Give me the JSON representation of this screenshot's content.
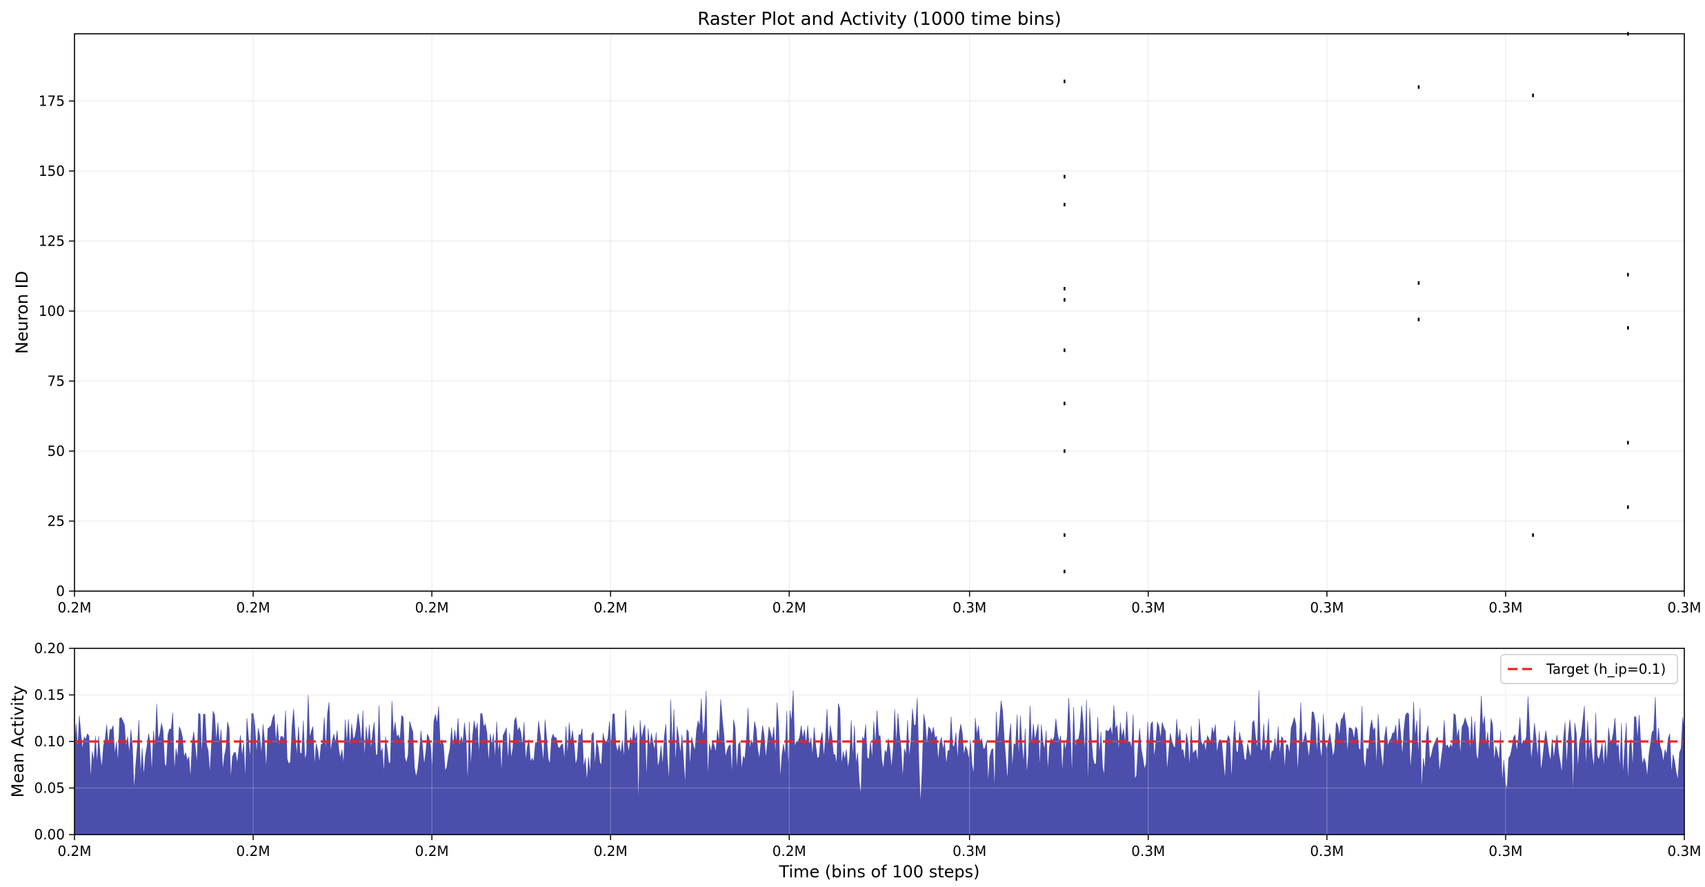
{
  "chart_data": [
    {
      "type": "scatter",
      "title": "Raster Plot and Activity (1000 time bins)",
      "xlabel": "",
      "ylabel": "Neuron ID",
      "xlim": [
        0,
        1000
      ],
      "ylim": [
        0,
        199
      ],
      "x_tick_positions": [
        0,
        111,
        222,
        333,
        444,
        556,
        667,
        778,
        889,
        1000
      ],
      "x_tick_labels": [
        "0.2M",
        "0.2M",
        "0.2M",
        "0.2M",
        "0.2M",
        "0.3M",
        "0.3M",
        "0.3M",
        "0.3M",
        "0.3M"
      ],
      "y_ticks": [
        0,
        25,
        50,
        75,
        100,
        125,
        150,
        175
      ],
      "grid": true,
      "points": [
        {
          "x": 615,
          "y": 182
        },
        {
          "x": 615,
          "y": 148
        },
        {
          "x": 615,
          "y": 138
        },
        {
          "x": 615,
          "y": 108
        },
        {
          "x": 615,
          "y": 104
        },
        {
          "x": 615,
          "y": 86
        },
        {
          "x": 615,
          "y": 67
        },
        {
          "x": 615,
          "y": 50
        },
        {
          "x": 615,
          "y": 20
        },
        {
          "x": 615,
          "y": 7
        },
        {
          "x": 835,
          "y": 180
        },
        {
          "x": 835,
          "y": 110
        },
        {
          "x": 835,
          "y": 97
        },
        {
          "x": 906,
          "y": 177
        },
        {
          "x": 906,
          "y": 20
        },
        {
          "x": 965,
          "y": 199
        },
        {
          "x": 965,
          "y": 113
        },
        {
          "x": 965,
          "y": 94
        },
        {
          "x": 965,
          "y": 53
        },
        {
          "x": 965,
          "y": 30
        }
      ]
    },
    {
      "type": "area",
      "title": "",
      "xlabel": "Time (bins of 100 steps)",
      "ylabel": "Mean Activity",
      "xlim": [
        0,
        1000
      ],
      "ylim": [
        0,
        0.2
      ],
      "x_tick_positions": [
        0,
        111,
        222,
        333,
        444,
        556,
        667,
        778,
        889,
        1000
      ],
      "x_tick_labels": [
        "0.2M",
        "0.2M",
        "0.2M",
        "0.2M",
        "0.2M",
        "0.3M",
        "0.3M",
        "0.3M",
        "0.3M",
        "0.3M"
      ],
      "y_ticks": [
        "0.00",
        "0.05",
        "0.10",
        "0.15",
        "0.20"
      ],
      "y_tick_values": [
        0,
        0.05,
        0.1,
        0.15,
        0.2
      ],
      "grid": true,
      "fill_color": "#4b4fab",
      "activity_mean": 0.1,
      "activity_spread": 0.02,
      "activity_points": 1000,
      "target": {
        "value": 0.1,
        "label": "Target (h_ip=0.1)",
        "color": "#ee2222"
      },
      "legend_position": "top-right"
    }
  ]
}
